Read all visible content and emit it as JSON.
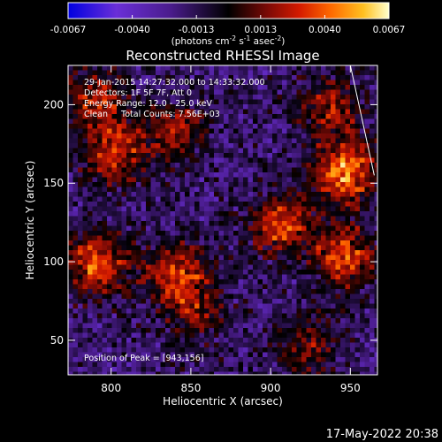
{
  "chart_data": {
    "type": "heatmap",
    "title": "Reconstructed RHESSI Image",
    "xlabel": "Heliocentric X (arcsec)",
    "ylabel": "Heliocentric Y (arcsec)",
    "xlim": [
      773,
      967
    ],
    "ylim": [
      28,
      225
    ],
    "x_ticks": [
      800,
      850,
      900,
      950
    ],
    "y_ticks": [
      50,
      100,
      150,
      200
    ],
    "colorbar": {
      "min": -0.0067,
      "max": 0.0067,
      "ticks": [
        "-0.0067",
        "-0.0040",
        "-0.0013",
        "0.0013",
        "0.0040",
        "0.0067"
      ],
      "unit_label": "(photons cm",
      "unit_exp1": "-2",
      "unit_mid": " s",
      "unit_exp2": "-1",
      "unit_mid2": " asec",
      "unit_exp3": "-2",
      "unit_end": ")",
      "colormap": [
        "#0000e0",
        "#6a2fd8",
        "#4a1c8c",
        "#000000",
        "#7a0a06",
        "#d41a00",
        "#ff6a00",
        "#ffc020",
        "#ffffcc"
      ]
    },
    "hot_regions": [
      {
        "x": 790,
        "y": 100,
        "intensity": 0.0055
      },
      {
        "x": 800,
        "y": 170,
        "intensity": 0.0045
      },
      {
        "x": 790,
        "y": 205,
        "intensity": 0.004
      },
      {
        "x": 840,
        "y": 95,
        "intensity": 0.0045
      },
      {
        "x": 850,
        "y": 70,
        "intensity": 0.003
      },
      {
        "x": 838,
        "y": 185,
        "intensity": 0.0035
      },
      {
        "x": 905,
        "y": 125,
        "intensity": 0.005
      },
      {
        "x": 945,
        "y": 158,
        "intensity": 0.0065
      },
      {
        "x": 945,
        "y": 105,
        "intensity": 0.005
      },
      {
        "x": 920,
        "y": 50,
        "intensity": 0.003
      },
      {
        "x": 935,
        "y": 200,
        "intensity": 0.004
      }
    ],
    "limb_line": [
      [
        950,
        225
      ],
      [
        965,
        155
      ]
    ],
    "annotations": {
      "time_range": "29-Jan-2015 14:27:32.000 to 14:33:32.000",
      "detectors": "Detectors: 1F 5F 7F, Att 0",
      "energy": "Energy Range: 12.0 - 25.0 keV",
      "method": "Clean     Total Counts: 7.56E+03",
      "peak": "Position of Peak = [943,156]"
    }
  },
  "footer": {
    "date": "17-May-2022 20:38"
  }
}
